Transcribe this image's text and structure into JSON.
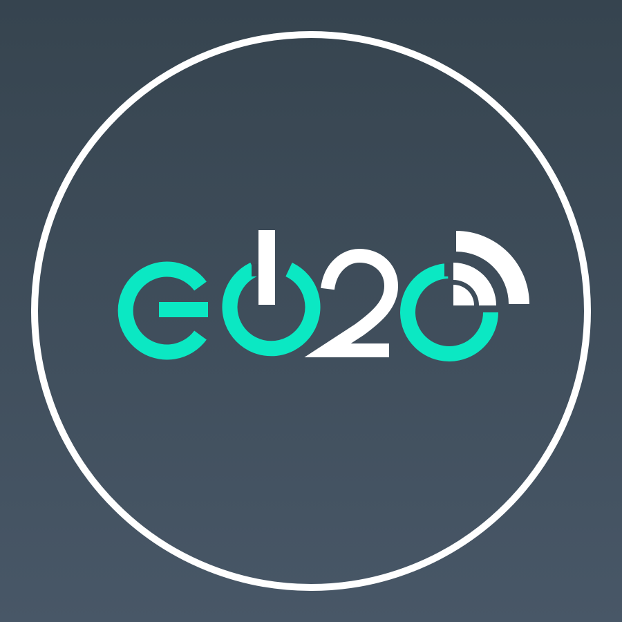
{
  "logo": {
    "wordmark": "GO2O",
    "colors": {
      "background_top": "#36444f",
      "background_bottom": "#485767",
      "ring": "#ffffff",
      "accent": "#0be8c3",
      "white": "#ffffff"
    },
    "icons": [
      "power-icon",
      "signal-waves-icon"
    ]
  }
}
